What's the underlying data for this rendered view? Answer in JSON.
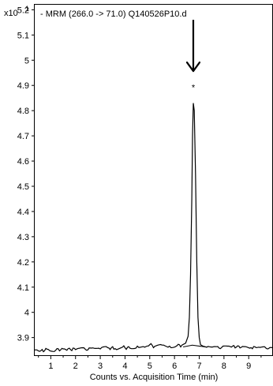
{
  "chart_data": {
    "type": "line",
    "title": "- MRM (266.0 -> 71.0) Q140526P10.d",
    "y_multiplier_label": "x10",
    "y_multiplier_exponent": "1",
    "xlabel": "Counts vs. Acquisition Time (min)",
    "ylabel": "",
    "xlim": [
      0.35,
      9.95
    ],
    "ylim": [
      3.83,
      5.22
    ],
    "x_ticks": [
      1,
      2,
      3,
      4,
      5,
      6,
      7,
      8,
      9
    ],
    "x_tick_labels": [
      "1",
      "2",
      "3",
      "4",
      "5",
      "6",
      "7",
      "8",
      "9"
    ],
    "y_ticks": [
      3.9,
      4.0,
      4.1,
      4.2,
      4.3,
      4.4,
      4.5,
      4.6,
      4.7,
      4.8,
      4.9,
      5.0,
      5.1,
      5.2
    ],
    "y_tick_labels": [
      "3.9",
      "4",
      "4.1",
      "4.2",
      "4.3",
      "4.4",
      "4.5",
      "4.6",
      "4.7",
      "4.8",
      "4.9",
      "5",
      "5.1",
      "5.2"
    ],
    "grid": false,
    "series": [
      {
        "values_x": [
          0.35,
          0.6,
          0.9,
          1.2,
          1.5,
          1.8,
          2.1,
          2.4,
          2.7,
          3.0,
          3.3,
          3.6,
          3.9,
          4.2,
          4.5,
          4.8,
          5.0,
          5.2,
          5.5,
          5.8,
          6.1,
          6.3,
          6.45,
          6.55,
          6.6,
          6.65,
          6.7,
          6.73,
          6.76,
          6.8,
          6.85,
          6.9,
          6.95,
          7.0,
          7.05,
          7.15,
          7.3,
          7.6,
          7.9,
          8.2,
          8.5,
          8.8,
          9.1,
          9.4,
          9.7,
          9.95
        ],
        "values_y": [
          3.851,
          3.848,
          3.853,
          3.85,
          3.855,
          3.852,
          3.857,
          3.853,
          3.859,
          3.855,
          3.86,
          3.856,
          3.862,
          3.858,
          3.866,
          3.862,
          3.872,
          3.865,
          3.87,
          3.866,
          3.868,
          3.87,
          3.878,
          3.905,
          3.98,
          4.15,
          4.45,
          4.7,
          4.83,
          4.8,
          4.55,
          4.2,
          3.98,
          3.9,
          3.872,
          3.866,
          3.862,
          3.864,
          3.86,
          3.866,
          3.862,
          3.864,
          3.86,
          3.862,
          3.858,
          3.86
        ]
      }
    ],
    "baseline": {
      "x": [
        6.35,
        6.72,
        7.3
      ],
      "y": [
        3.863,
        3.87,
        3.862
      ]
    },
    "peak_marker": {
      "x": 6.76,
      "y": 4.88,
      "label": "*"
    },
    "annotation_arrow": {
      "x": 6.76,
      "y_top": 5.16,
      "y_bottom": 4.96
    }
  }
}
